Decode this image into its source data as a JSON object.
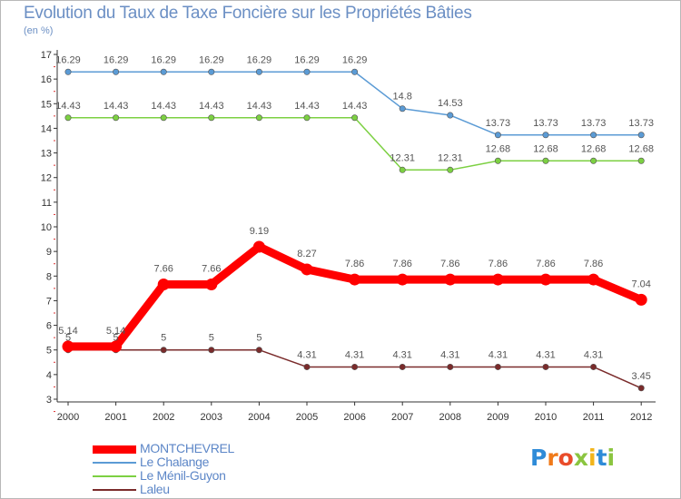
{
  "header": {
    "title": "Evolution du Taux de Taxe Foncière sur les Propriétés Bâties",
    "unit": "(en %)"
  },
  "chart_data": {
    "type": "line",
    "title": "Evolution du Taux de Taxe Foncière sur les Propriétés Bâties",
    "ylabel": "(en %)",
    "xlabel": "",
    "x": [
      "2000",
      "2001",
      "2002",
      "2003",
      "2004",
      "2005",
      "2006",
      "2007",
      "2008",
      "2009",
      "2010",
      "2011",
      "2012"
    ],
    "ylim": [
      3,
      17
    ],
    "yticks": [
      3,
      4,
      5,
      6,
      7,
      8,
      9,
      10,
      11,
      12,
      13,
      14,
      15,
      16,
      17
    ],
    "grid": false,
    "legend_position": "bottom-left",
    "series": [
      {
        "name": "MONTCHEVREL",
        "color": "#ff0000",
        "values": [
          5.14,
          5.14,
          7.66,
          7.66,
          9.19,
          8.27,
          7.86,
          7.86,
          7.86,
          7.86,
          7.86,
          7.86,
          7.04
        ],
        "labels": [
          "5.14",
          "5.14",
          "7.66",
          "7.66",
          "9.19",
          "8.27",
          "7.86",
          "7.86",
          "7.86",
          "7.86",
          "7.86",
          "7.86",
          "7.04"
        ]
      },
      {
        "name": "Le Chalange",
        "color": "#5b9bd5",
        "values": [
          16.29,
          16.29,
          16.29,
          16.29,
          16.29,
          16.29,
          16.29,
          14.8,
          14.53,
          13.73,
          13.73,
          13.73,
          13.73
        ],
        "labels": [
          "16.29",
          "16.29",
          "16.29",
          "16.29",
          "16.29",
          "16.29",
          "16.29",
          "14.8",
          "14.53",
          "13.73",
          "13.73",
          "13.73",
          "13.73"
        ]
      },
      {
        "name": "Le Ménil-Guyon",
        "color": "#7cd042",
        "values": [
          14.43,
          14.43,
          14.43,
          14.43,
          14.43,
          14.43,
          14.43,
          12.31,
          12.31,
          12.68,
          12.68,
          12.68,
          12.68
        ],
        "labels": [
          "14.43",
          "14.43",
          "14.43",
          "14.43",
          "14.43",
          "14.43",
          "14.43",
          "12.31",
          "12.31",
          "12.68",
          "12.68",
          "12.68",
          "12.68"
        ]
      },
      {
        "name": "Laleu",
        "color": "#7a2b2b",
        "values": [
          5,
          5,
          5,
          5,
          5,
          4.31,
          4.31,
          4.31,
          4.31,
          4.31,
          4.31,
          4.31,
          3.45
        ],
        "labels": [
          "5",
          "5",
          "5",
          "5",
          "5",
          "4.31",
          "4.31",
          "4.31",
          "4.31",
          "4.31",
          "4.31",
          "4.31",
          "3.45"
        ]
      }
    ]
  },
  "legend": {
    "items": [
      {
        "label": "MONTCHEVREL",
        "color": "#ff0000"
      },
      {
        "label": "Le Chalange",
        "color": "#5b9bd5"
      },
      {
        "label": "Le Ménil-Guyon",
        "color": "#7cd042"
      },
      {
        "label": "Laleu",
        "color": "#7a2b2b"
      }
    ]
  },
  "logo": {
    "letters": [
      "P",
      "r",
      "o",
      "x",
      "i",
      "t",
      "i"
    ],
    "colors": [
      "#2e8bd8",
      "#f07a1a",
      "#e94c2a",
      "#8bc540",
      "#f2b51b",
      "#2e8bd8",
      "#8bc540"
    ]
  }
}
